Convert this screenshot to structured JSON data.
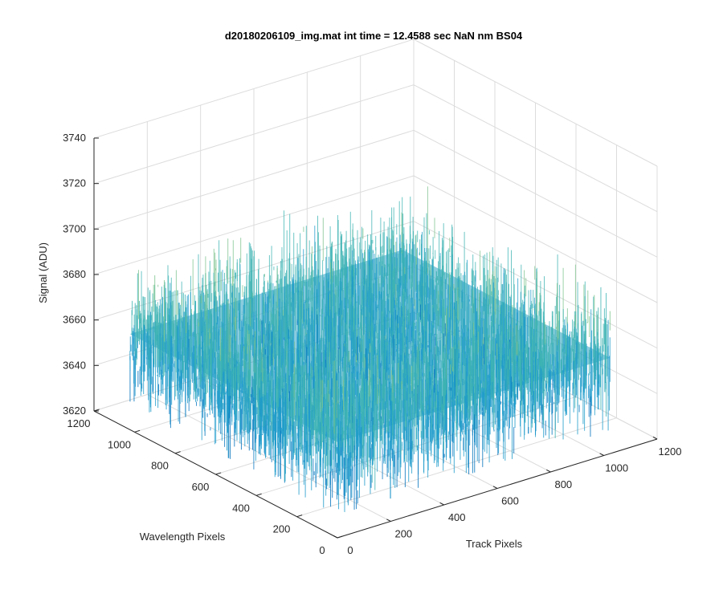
{
  "chart_data": {
    "type": "surface",
    "title": "d20180206109_img.mat int time = 12.4588 sec  NaN nm BS04",
    "xlabel": "Track Pixels",
    "ylabel": "Wavelength Pixels",
    "zlabel": "Signal (ADU)",
    "xlim": [
      0,
      1200
    ],
    "ylim": [
      0,
      1200
    ],
    "zlim": [
      3620,
      3740
    ],
    "xticks": [
      0,
      200,
      400,
      600,
      800,
      1000,
      1200
    ],
    "yticks": [
      0,
      200,
      400,
      600,
      800,
      1000,
      1200
    ],
    "zticks": [
      3620,
      3640,
      3660,
      3680,
      3700,
      3720,
      3740
    ],
    "x_extent": [
      1,
      1024
    ],
    "y_extent": [
      1,
      1024
    ],
    "z_mean": 3662,
    "z_noise_range": [
      3630,
      3710
    ],
    "grid": true,
    "colormap": [
      "#0072BD",
      "#1E9BCB",
      "#3DB3B3",
      "#7CC38C",
      "#C8C96A"
    ]
  }
}
